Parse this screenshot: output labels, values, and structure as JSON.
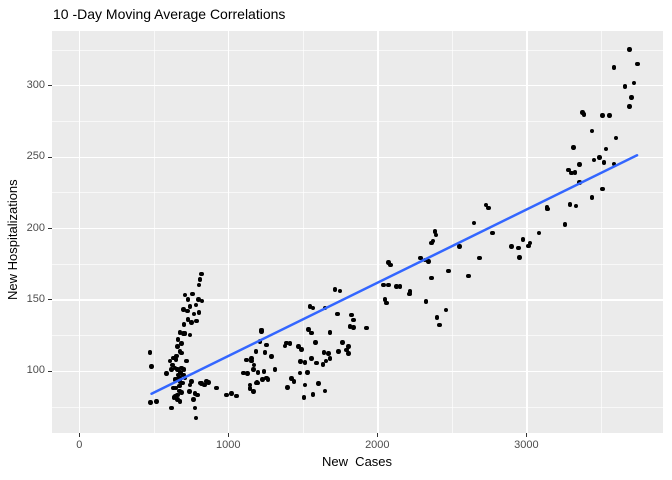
{
  "title": "10 -Day Moving Average Correlations",
  "chart_data": {
    "type": "scatter",
    "title": "10 -Day Moving Average Correlations",
    "xlabel": "New  Cases",
    "ylabel": "New Hospitalizations",
    "xlim": [
      -183,
      3917
    ],
    "ylim": [
      56.5,
      338
    ],
    "x_ticks": [
      0,
      1000,
      2000,
      3000
    ],
    "x_minor_ticks": [
      500,
      1500,
      2500,
      3500
    ],
    "y_ticks": [
      100,
      150,
      200,
      250,
      300
    ],
    "y_minor_ticks": [
      75,
      125,
      175,
      225,
      275,
      325
    ],
    "grid": "on",
    "legend": "none",
    "panel_bg": "#EBEBEB",
    "grid_color": "#FFFFFF",
    "point_color": "#000000",
    "tick_color": "#333333",
    "tick_label_color": "#4d4d4d",
    "trend_line": {
      "color": "#3366FF",
      "width": 2.5,
      "x1": 485,
      "y1": 84,
      "x2": 3743,
      "y2": 251
    },
    "points": [
      [
        474,
        113
      ],
      [
        486,
        103
      ],
      [
        479,
        78
      ],
      [
        519,
        78.5
      ],
      [
        587,
        98
      ],
      [
        609,
        107
      ],
      [
        620,
        101
      ],
      [
        620,
        74
      ],
      [
        627,
        104
      ],
      [
        631,
        109
      ],
      [
        631,
        88
      ],
      [
        635,
        81.5
      ],
      [
        642,
        102
      ],
      [
        642,
        94
      ],
      [
        642,
        82.5
      ],
      [
        649,
        108
      ],
      [
        649,
        88
      ],
      [
        654,
        110.5
      ],
      [
        654,
        94
      ],
      [
        658,
        117
      ],
      [
        658,
        101
      ],
      [
        658,
        83
      ],
      [
        658,
        80
      ],
      [
        664,
        122
      ],
      [
        664,
        97
      ],
      [
        671,
        95.5
      ],
      [
        671,
        89.5
      ],
      [
        671,
        86
      ],
      [
        676,
        127
      ],
      [
        676,
        113.5
      ],
      [
        676,
        92.5
      ],
      [
        676,
        78.5
      ],
      [
        680,
        99
      ],
      [
        687,
        119
      ],
      [
        687,
        112.5
      ],
      [
        687,
        102
      ],
      [
        687,
        85
      ],
      [
        694,
        91.5
      ],
      [
        698,
        143
      ],
      [
        698,
        126
      ],
      [
        698,
        97
      ],
      [
        703,
        132.5
      ],
      [
        703,
        101
      ],
      [
        709,
        153
      ],
      [
        709,
        126
      ],
      [
        709,
        95
      ],
      [
        721,
        107
      ],
      [
        725,
        142
      ],
      [
        731,
        150
      ],
      [
        731,
        136
      ],
      [
        738,
        85.5
      ],
      [
        743,
        145
      ],
      [
        743,
        125
      ],
      [
        743,
        90
      ],
      [
        754,
        134
      ],
      [
        754,
        92.5
      ],
      [
        761,
        154
      ],
      [
        765,
        80
      ],
      [
        770,
        140
      ],
      [
        776,
        84
      ],
      [
        776,
        74
      ],
      [
        783,
        146
      ],
      [
        783,
        67
      ],
      [
        788,
        135
      ],
      [
        792,
        83
      ],
      [
        799,
        150
      ],
      [
        803,
        160
      ],
      [
        805,
        141
      ],
      [
        810,
        164
      ],
      [
        815,
        91.5
      ],
      [
        821,
        168
      ],
      [
        821,
        91
      ],
      [
        825,
        149
      ],
      [
        839,
        90
      ],
      [
        855,
        92.5
      ],
      [
        866,
        92
      ],
      [
        922,
        88
      ],
      [
        989,
        83
      ],
      [
        1023,
        84
      ],
      [
        1056,
        82.5
      ],
      [
        1101,
        98.5
      ],
      [
        1123,
        107.5
      ],
      [
        1130,
        98
      ],
      [
        1146,
        90
      ],
      [
        1146,
        87.5
      ],
      [
        1157,
        108.5
      ],
      [
        1157,
        107
      ],
      [
        1168,
        101
      ],
      [
        1168,
        85.5
      ],
      [
        1172,
        104
      ],
      [
        1186,
        113.5
      ],
      [
        1186,
        91.5
      ],
      [
        1191,
        92
      ],
      [
        1201,
        99
      ],
      [
        1201,
        91.5
      ],
      [
        1213,
        120.5
      ],
      [
        1224,
        128.5
      ],
      [
        1224,
        127.5
      ],
      [
        1231,
        94
      ],
      [
        1240,
        99.5
      ],
      [
        1246,
        113
      ],
      [
        1258,
        118
      ],
      [
        1258,
        95
      ],
      [
        1268,
        94
      ],
      [
        1291,
        110
      ],
      [
        1313,
        101
      ],
      [
        1380,
        117.5
      ],
      [
        1392,
        119.5
      ],
      [
        1397,
        88.5
      ],
      [
        1414,
        119
      ],
      [
        1425,
        94.5
      ],
      [
        1441,
        92.5
      ],
      [
        1470,
        117
      ],
      [
        1481,
        98.5
      ],
      [
        1486,
        106.5
      ],
      [
        1492,
        115
      ],
      [
        1508,
        81.5
      ],
      [
        1515,
        106
      ],
      [
        1515,
        90
      ],
      [
        1530,
        99
      ],
      [
        1537,
        129
      ],
      [
        1548,
        145
      ],
      [
        1559,
        126.5
      ],
      [
        1559,
        108.5
      ],
      [
        1570,
        144
      ],
      [
        1570,
        83.5
      ],
      [
        1586,
        120
      ],
      [
        1593,
        105.5
      ],
      [
        1604,
        91
      ],
      [
        1634,
        104.5
      ],
      [
        1642,
        113
      ],
      [
        1649,
        144
      ],
      [
        1649,
        86
      ],
      [
        1656,
        107
      ],
      [
        1671,
        112
      ],
      [
        1682,
        127
      ],
      [
        1682,
        108.5
      ],
      [
        1716,
        157
      ],
      [
        1732,
        140
      ],
      [
        1738,
        113.5
      ],
      [
        1750,
        156
      ],
      [
        1768,
        120
      ],
      [
        1794,
        114.5
      ],
      [
        1805,
        117
      ],
      [
        1805,
        112
      ],
      [
        1817,
        131
      ],
      [
        1828,
        139
      ],
      [
        1839,
        135.5
      ],
      [
        1839,
        130.5
      ],
      [
        1929,
        130
      ],
      [
        2040,
        160
      ],
      [
        2052,
        150
      ],
      [
        2063,
        147.5
      ],
      [
        2074,
        176
      ],
      [
        2074,
        160
      ],
      [
        2090,
        174
      ],
      [
        2130,
        159
      ],
      [
        2152,
        159
      ],
      [
        2215,
        154
      ],
      [
        2219,
        155.5
      ],
      [
        2291,
        179
      ],
      [
        2320,
        177.5
      ],
      [
        2327,
        148.5
      ],
      [
        2342,
        176.5
      ],
      [
        2365,
        189.5
      ],
      [
        2365,
        165
      ],
      [
        2372,
        191
      ],
      [
        2387,
        197.5
      ],
      [
        2394,
        195
      ],
      [
        2402,
        137.5
      ],
      [
        2416,
        132
      ],
      [
        2461,
        142.5
      ],
      [
        2477,
        170
      ],
      [
        2550,
        187
      ],
      [
        2611,
        166.5
      ],
      [
        2649,
        203.5
      ],
      [
        2685,
        179
      ],
      [
        2730,
        216
      ],
      [
        2745,
        214
      ],
      [
        2774,
        196.5
      ],
      [
        2902,
        187
      ],
      [
        2946,
        186
      ],
      [
        2953,
        179.5
      ],
      [
        2976,
        192
      ],
      [
        3013,
        187.5
      ],
      [
        3025,
        189.5
      ],
      [
        3085,
        196.5
      ],
      [
        3137,
        214.5
      ],
      [
        3141,
        213.5
      ],
      [
        3259,
        202.5
      ],
      [
        3282,
        240.5
      ],
      [
        3293,
        216.5
      ],
      [
        3304,
        238.5
      ],
      [
        3315,
        256.5
      ],
      [
        3327,
        239
      ],
      [
        3333,
        215.5
      ],
      [
        3356,
        244.5
      ],
      [
        3356,
        232
      ],
      [
        3378,
        281
      ],
      [
        3387,
        279.5
      ],
      [
        3439,
        268
      ],
      [
        3439,
        221.5
      ],
      [
        3454,
        247.5
      ],
      [
        3490,
        249.5
      ],
      [
        3512,
        279
      ],
      [
        3512,
        227.5
      ],
      [
        3521,
        246
      ],
      [
        3535,
        255.5
      ],
      [
        3557,
        279
      ],
      [
        3588,
        312.5
      ],
      [
        3588,
        245
      ],
      [
        3602,
        263
      ],
      [
        3662,
        299
      ],
      [
        3691,
        325
      ],
      [
        3691,
        285
      ],
      [
        3707,
        291.5
      ],
      [
        3723,
        301.5
      ],
      [
        3745,
        315
      ]
    ]
  }
}
